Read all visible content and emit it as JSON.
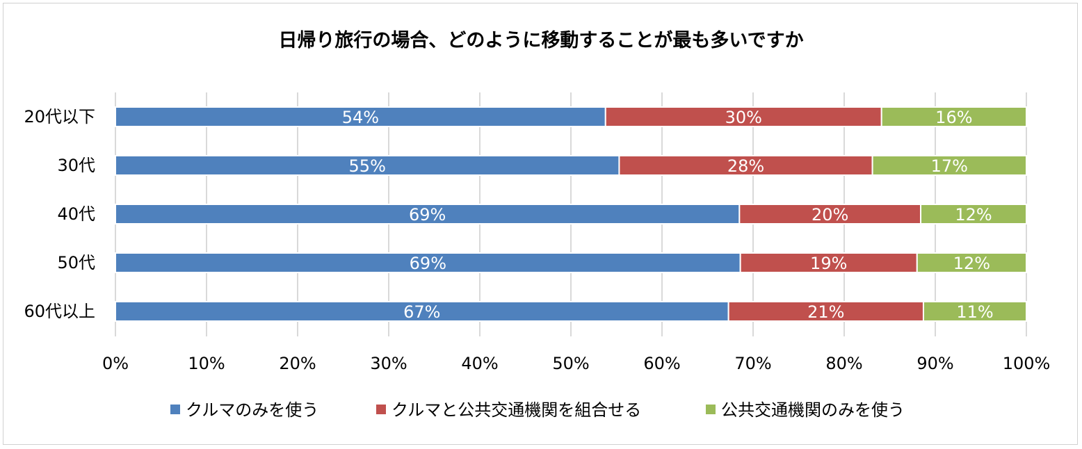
{
  "chart_data": {
    "type": "bar",
    "orientation": "horizontal",
    "stacked": "percent",
    "title": "日帰り旅行の場合、どのように移動することが最も多いですか",
    "categories": [
      "20代以下",
      "30代",
      "40代",
      "50代",
      "60代以上"
    ],
    "series": [
      {
        "name": "クルマのみを使う",
        "color": "#4f81bd",
        "values": [
          53.8,
          55.3,
          68.5,
          68.6,
          67.3
        ],
        "labels": [
          "54%",
          "55%",
          "69%",
          "69%",
          "67%"
        ]
      },
      {
        "name": "クルマと公共交通機関を組合せる",
        "color": "#c0504d",
        "values": [
          30.3,
          27.8,
          19.9,
          19.4,
          21.4
        ],
        "labels": [
          "30%",
          "28%",
          "20%",
          "19%",
          "21%"
        ]
      },
      {
        "name": "公共交通機関のみを使う",
        "color": "#9bbb59",
        "values": [
          15.9,
          16.9,
          11.6,
          12.0,
          11.3
        ],
        "labels": [
          "16%",
          "17%",
          "12%",
          "12%",
          "11%"
        ]
      }
    ],
    "x_ticks": [
      "0%",
      "10%",
      "20%",
      "30%",
      "40%",
      "50%",
      "60%",
      "70%",
      "80%",
      "90%",
      "100%"
    ],
    "xlim": [
      0,
      100
    ],
    "grid": true,
    "legend_position": "bottom"
  }
}
